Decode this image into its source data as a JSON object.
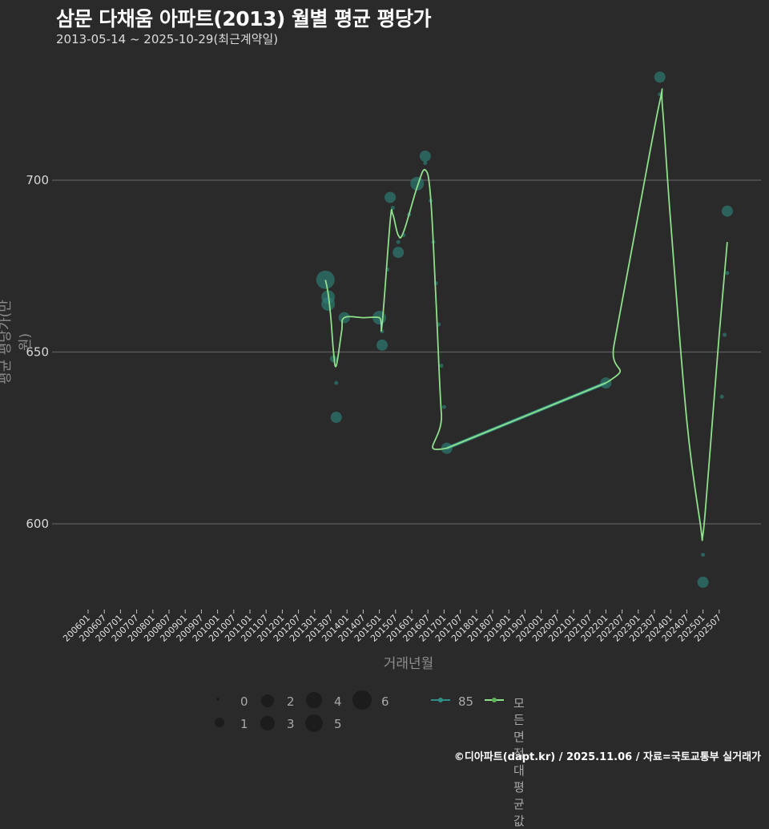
{
  "header": {
    "title": "삼문 다채움 아파트(2013) 월별 평균 평당가",
    "subtitle": "2013-05-14 ~ 2025-10-29(최근계약일)"
  },
  "axes": {
    "y_title": "평균 평당가(만 원)",
    "x_title": "거래년월",
    "y_ticks": [
      "600",
      "650",
      "700"
    ],
    "x_ticks": [
      "200601",
      "200607",
      "200701",
      "200707",
      "200801",
      "200807",
      "200901",
      "200907",
      "201001",
      "201007",
      "201101",
      "201107",
      "201201",
      "201207",
      "201301",
      "201307",
      "201401",
      "201407",
      "201501",
      "201507",
      "201601",
      "201607",
      "201701",
      "201707",
      "201801",
      "201807",
      "201901",
      "201907",
      "202001",
      "202007",
      "202101",
      "202107",
      "202201",
      "202207",
      "202301",
      "202307",
      "202401",
      "202407",
      "202501",
      "202507"
    ]
  },
  "legend": {
    "size_title": "",
    "sizes": [
      "0",
      "1",
      "2",
      "3",
      "4",
      "5",
      "6"
    ],
    "series": [
      {
        "label": "85",
        "color": "#2f8f86"
      },
      {
        "label": "모든 면적대 평균값",
        "color": "#8fe08a"
      }
    ]
  },
  "footer": {
    "credit": "©디아파트(dapt.kr) / 2025.11.06 / 자료=국토교통부 실거래가"
  },
  "colors": {
    "background": "#2a2a2b",
    "grid": "#5e5e5e",
    "point": "#2e7a72",
    "area85": "#2f8f86",
    "average_line": "#8fe08a"
  },
  "chart_data": {
    "type": "scatter",
    "title": "삼문 다채움 아파트(2013) 월별 평균 평당가",
    "subtitle": "2013-05-14 ~ 2025-10-29(최근계약일)",
    "xlabel": "거래년월",
    "ylabel": "평균 평당가(만 원)",
    "ylim": [
      575,
      738
    ],
    "xlim": [
      "200601",
      "202510"
    ],
    "grid": true,
    "legend_position": "bottom",
    "series": [
      {
        "name": "85",
        "type": "scatter",
        "points": [
          {
            "x": "201305",
            "y": 671,
            "count": 5
          },
          {
            "x": "201306",
            "y": 666,
            "count": 3
          },
          {
            "x": "201306",
            "y": 664,
            "count": 3
          },
          {
            "x": "201308",
            "y": 648,
            "count": 1
          },
          {
            "x": "201309",
            "y": 641,
            "count": 0
          },
          {
            "x": "201309",
            "y": 631,
            "count": 2
          },
          {
            "x": "201312",
            "y": 660,
            "count": 2
          },
          {
            "x": "201501",
            "y": 660,
            "count": 3
          },
          {
            "x": "201502",
            "y": 656,
            "count": 0
          },
          {
            "x": "201502",
            "y": 652,
            "count": 2
          },
          {
            "x": "201504",
            "y": 674,
            "count": 0
          },
          {
            "x": "201505",
            "y": 695,
            "count": 2
          },
          {
            "x": "201506",
            "y": 692,
            "count": 0
          },
          {
            "x": "201508",
            "y": 682,
            "count": 0
          },
          {
            "x": "201508",
            "y": 679,
            "count": 2
          },
          {
            "x": "201510",
            "y": 684,
            "count": 0
          },
          {
            "x": "201512",
            "y": 690,
            "count": 0
          },
          {
            "x": "201603",
            "y": 699,
            "count": 3
          },
          {
            "x": "201606",
            "y": 707,
            "count": 2
          },
          {
            "x": "201606",
            "y": 705,
            "count": 0
          },
          {
            "x": "201608",
            "y": 694,
            "count": 0
          },
          {
            "x": "201609",
            "y": 682,
            "count": 0
          },
          {
            "x": "201610",
            "y": 670,
            "count": 0
          },
          {
            "x": "201611",
            "y": 658,
            "count": 0
          },
          {
            "x": "201612",
            "y": 646,
            "count": 0
          },
          {
            "x": "201701",
            "y": 634,
            "count": 0
          },
          {
            "x": "201702",
            "y": 622,
            "count": 2
          },
          {
            "x": "202201",
            "y": 641,
            "count": 2
          },
          {
            "x": "202309",
            "y": 730,
            "count": 2
          },
          {
            "x": "202309",
            "y": 725,
            "count": 0
          },
          {
            "x": "202501",
            "y": 591,
            "count": 0
          },
          {
            "x": "202501",
            "y": 583,
            "count": 2
          },
          {
            "x": "202508",
            "y": 637,
            "count": 0
          },
          {
            "x": "202509",
            "y": 655,
            "count": 0
          },
          {
            "x": "202510",
            "y": 673,
            "count": 0
          },
          {
            "x": "202510",
            "y": 691,
            "count": 2
          }
        ]
      },
      {
        "name": "모든 면적대 평균값",
        "type": "line",
        "points": [
          {
            "x": "201305",
            "y": 671
          },
          {
            "x": "201306",
            "y": 667
          },
          {
            "x": "201307",
            "y": 660
          },
          {
            "x": "201308",
            "y": 650
          },
          {
            "x": "201309",
            "y": 646
          },
          {
            "x": "201311",
            "y": 656
          },
          {
            "x": "201312",
            "y": 660
          },
          {
            "x": "201407",
            "y": 660
          },
          {
            "x": "201501",
            "y": 660
          },
          {
            "x": "201502",
            "y": 658
          },
          {
            "x": "201505",
            "y": 688
          },
          {
            "x": "201506",
            "y": 690
          },
          {
            "x": "201508",
            "y": 684
          },
          {
            "x": "201510",
            "y": 685
          },
          {
            "x": "201603",
            "y": 698
          },
          {
            "x": "201606",
            "y": 703
          },
          {
            "x": "201608",
            "y": 695
          },
          {
            "x": "201610",
            "y": 665
          },
          {
            "x": "201612",
            "y": 632
          },
          {
            "x": "201702",
            "y": 622
          },
          {
            "x": "202201",
            "y": 641
          },
          {
            "x": "202204",
            "y": 652
          },
          {
            "x": "202301",
            "y": 690
          },
          {
            "x": "202309",
            "y": 723
          },
          {
            "x": "202310",
            "y": 721
          },
          {
            "x": "202401",
            "y": 688
          },
          {
            "x": "202407",
            "y": 630
          },
          {
            "x": "202412",
            "y": 600
          },
          {
            "x": "202501",
            "y": 597
          },
          {
            "x": "202503",
            "y": 615
          },
          {
            "x": "202507",
            "y": 655
          },
          {
            "x": "202510",
            "y": 682
          }
        ]
      }
    ]
  }
}
